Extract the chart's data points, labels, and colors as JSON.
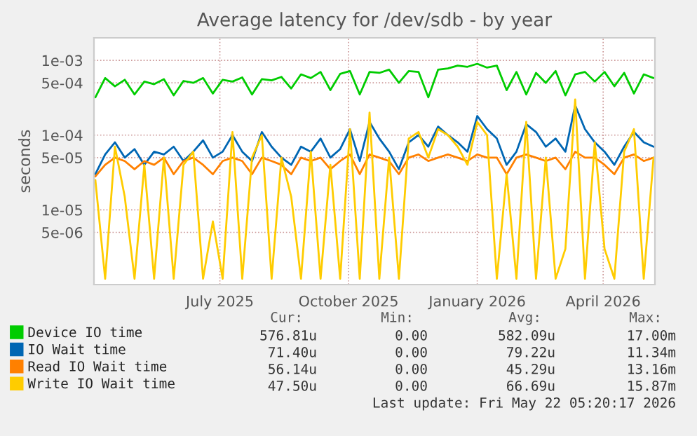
{
  "chart_data": {
    "type": "line",
    "title": "Average latency for /dev/sdb - by year",
    "ylabel": "seconds",
    "x": [
      "2025-04-03",
      "2025-04-10",
      "2025-04-17",
      "2025-04-24",
      "2025-05-01",
      "2025-05-08",
      "2025-05-15",
      "2025-05-22",
      "2025-05-29",
      "2025-06-05",
      "2025-06-12",
      "2025-06-19",
      "2025-06-26",
      "2025-07-03",
      "2025-07-10",
      "2025-07-17",
      "2025-07-24",
      "2025-07-31",
      "2025-08-07",
      "2025-08-14",
      "2025-08-21",
      "2025-08-28",
      "2025-09-04",
      "2025-09-11",
      "2025-09-18",
      "2025-09-25",
      "2025-10-02",
      "2025-10-09",
      "2025-10-16",
      "2025-10-23",
      "2025-10-30",
      "2025-11-06",
      "2025-11-13",
      "2025-11-20",
      "2025-11-27",
      "2025-12-04",
      "2025-12-11",
      "2025-12-18",
      "2025-12-25",
      "2026-01-01",
      "2026-01-08",
      "2026-01-15",
      "2026-01-22",
      "2026-01-29",
      "2026-02-05",
      "2026-02-12",
      "2026-02-19",
      "2026-02-26",
      "2026-03-05",
      "2026-03-12",
      "2026-03-19",
      "2026-03-26",
      "2026-04-02",
      "2026-04-09",
      "2026-04-16",
      "2026-04-23",
      "2026-04-30",
      "2026-05-07"
    ],
    "series": [
      {
        "name": "Device IO time",
        "color": "#00cc00",
        "values": [
          0.00032,
          0.00058,
          0.00045,
          0.00055,
          0.00035,
          0.00052,
          0.00048,
          0.00056,
          0.00034,
          0.00053,
          0.0005,
          0.00058,
          0.00036,
          0.00055,
          0.00052,
          0.00059,
          0.00035,
          0.00056,
          0.00054,
          0.0006,
          0.00042,
          0.00065,
          0.00058,
          0.0007,
          0.0004,
          0.00066,
          0.00072,
          0.00035,
          0.0007,
          0.00068,
          0.00075,
          0.0005,
          0.00072,
          0.0007,
          0.00032,
          0.00075,
          0.00078,
          0.00085,
          0.00082,
          0.0009,
          0.0008,
          0.00085,
          0.0004,
          0.0007,
          0.00035,
          0.00068,
          0.0005,
          0.00072,
          0.00034,
          0.00065,
          0.0007,
          0.00052,
          0.0007,
          0.00045,
          0.00068,
          0.00036,
          0.00065,
          0.00058
        ]
      },
      {
        "name": "IO Wait time",
        "color": "#0066b3",
        "values": [
          3e-05,
          5.5e-05,
          8e-05,
          5e-05,
          6.5e-05,
          4e-05,
          6e-05,
          5.5e-05,
          7e-05,
          4.5e-05,
          6e-05,
          8.5e-05,
          5e-05,
          6e-05,
          0.0001,
          6e-05,
          4.5e-05,
          0.00011,
          7e-05,
          5e-05,
          4e-05,
          7e-05,
          6e-05,
          9e-05,
          5e-05,
          6.5e-05,
          0.00012,
          4.5e-05,
          0.00015,
          9e-05,
          6e-05,
          3.5e-05,
          8e-05,
          0.0001,
          7e-05,
          0.00013,
          0.0001,
          8e-05,
          6e-05,
          0.00018,
          0.00012,
          9e-05,
          4e-05,
          6e-05,
          0.00014,
          0.00011,
          7e-05,
          9e-05,
          6e-05,
          0.00025,
          0.00012,
          8e-05,
          6e-05,
          4e-05,
          7e-05,
          0.00011,
          8e-05,
          7e-05
        ]
      },
      {
        "name": "Read IO Wait time",
        "color": "#ff8000",
        "values": [
          2.8e-05,
          4e-05,
          5e-05,
          4.5e-05,
          3.5e-05,
          4.5e-05,
          4e-05,
          5e-05,
          3e-05,
          4.5e-05,
          5e-05,
          4e-05,
          3e-05,
          4.5e-05,
          5e-05,
          4.5e-05,
          3e-05,
          5e-05,
          4.5e-05,
          4e-05,
          3e-05,
          5e-05,
          4.5e-05,
          5e-05,
          3.5e-05,
          4.5e-05,
          5.5e-05,
          3e-05,
          5.5e-05,
          5e-05,
          4.5e-05,
          3e-05,
          5e-05,
          5.5e-05,
          4.5e-05,
          5e-05,
          5.5e-05,
          5e-05,
          4.5e-05,
          5.5e-05,
          5e-05,
          5e-05,
          3e-05,
          5e-05,
          5.5e-05,
          5e-05,
          4.5e-05,
          5e-05,
          3.5e-05,
          6e-05,
          5e-05,
          5e-05,
          4e-05,
          3e-05,
          5e-05,
          5.5e-05,
          4.5e-05,
          5e-05
        ]
      },
      {
        "name": "Write IO Wait time",
        "color": "#ffcc00",
        "values": [
          2.5e-05,
          1.2e-06,
          7e-05,
          1.5e-05,
          1.2e-06,
          4e-05,
          1.2e-06,
          5e-05,
          1.2e-06,
          4e-05,
          6e-05,
          1.2e-06,
          7e-06,
          1.2e-06,
          0.00011,
          1.2e-06,
          5e-05,
          0.0001,
          1.2e-06,
          5e-05,
          1.5e-05,
          1.2e-06,
          6e-05,
          1.2e-06,
          4e-05,
          1.2e-06,
          0.00012,
          1.2e-06,
          0.0002,
          1.2e-06,
          5e-05,
          1.2e-06,
          9e-05,
          0.00011,
          5e-05,
          0.00012,
          0.0001,
          7e-05,
          4e-05,
          0.00015,
          0.0001,
          1.2e-06,
          3e-05,
          1.2e-06,
          0.00015,
          1.2e-06,
          5e-05,
          1.2e-06,
          3e-06,
          0.0003,
          1.2e-06,
          8e-05,
          3e-06,
          1.2e-06,
          6e-05,
          0.00012,
          1.2e-06,
          5e-05
        ]
      }
    ],
    "log": "y",
    "ylim": [
      1e-06,
      0.002
    ],
    "yticks": [
      {
        "value": 0.001,
        "label": "1e-03"
      },
      {
        "value": 0.0005,
        "label": "5e-04"
      },
      {
        "value": 0.0001,
        "label": "1e-04"
      },
      {
        "value": 5e-05,
        "label": "5e-05"
      },
      {
        "value": 1e-05,
        "label": "1e-05"
      },
      {
        "value": 5e-06,
        "label": "5e-06"
      }
    ],
    "xlim": [
      "2025-04-02",
      "2026-05-08"
    ],
    "xticks": [
      {
        "value": "2025-07-01",
        "label": "July 2025"
      },
      {
        "value": "2025-10-01",
        "label": "October 2025"
      },
      {
        "value": "2026-01-01",
        "label": "January 2026"
      },
      {
        "value": "2026-04-01",
        "label": "April 2026"
      }
    ],
    "grid": true,
    "legend": "bottom",
    "marker": "none",
    "line_style": "solid",
    "annotations": [
      "Cur:",
      "Min:",
      "Avg:",
      "Max:",
      "576.81u",
      "0.00",
      "582.09u",
      "17.00m",
      "71.40u",
      "0.00",
      "79.22u",
      "11.34m",
      "56.14u",
      "0.00",
      "45.29u",
      "13.16m",
      "47.50u",
      "0.00",
      "66.69u",
      "15.87m",
      "Last update: Fri May 22 05:20:17 2026"
    ]
  }
}
